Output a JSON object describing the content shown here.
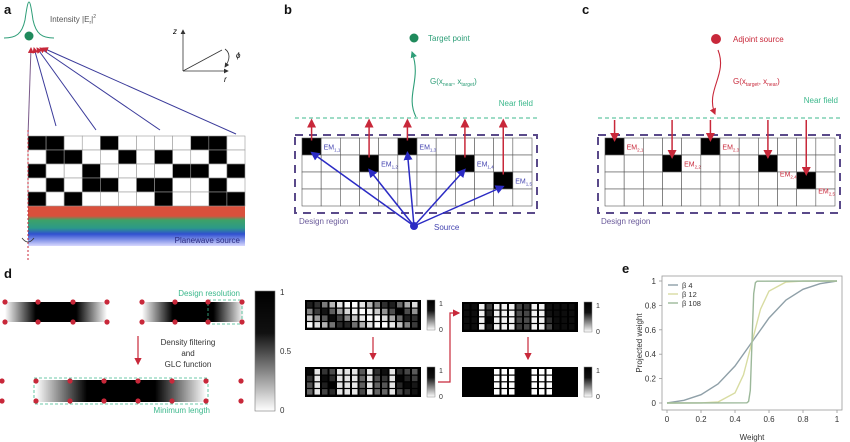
{
  "panel_labels": {
    "a": "a",
    "b": "b",
    "c": "c",
    "d": "d",
    "e": "e"
  },
  "panel_a": {
    "intensity_label": "Intensity |E",
    "intensity_sub": "r",
    "intensity_sup": "2",
    "axis_z": "z",
    "axis_r": "r",
    "axis_phi": "ϕ",
    "source_label": "Planewave source",
    "grid": [
      [
        1,
        1,
        0,
        0,
        1,
        0,
        0,
        0,
        0,
        1,
        1,
        0
      ],
      [
        0,
        1,
        1,
        0,
        0,
        1,
        0,
        1,
        0,
        0,
        1,
        0
      ],
      [
        1,
        0,
        0,
        1,
        0,
        0,
        0,
        0,
        1,
        1,
        0,
        1
      ],
      [
        0,
        1,
        0,
        1,
        1,
        0,
        1,
        1,
        0,
        0,
        1,
        0
      ],
      [
        1,
        0,
        1,
        0,
        0,
        0,
        0,
        1,
        0,
        0,
        1,
        1
      ]
    ]
  },
  "panel_b": {
    "target_label": "Target point",
    "green_fn": "G(x",
    "green_sub1": "near",
    "green_sub2": "target",
    "near_field": "Near field",
    "design_region": "Design region",
    "source": "Source",
    "em_labels": [
      {
        "main": "EM",
        "sub": "1,1"
      },
      {
        "main": "EM",
        "sub": "1,2"
      },
      {
        "main": "EM",
        "sub": "1,3"
      },
      {
        "main": "EM",
        "sub": "1,4"
      },
      {
        "main": "EM",
        "sub": "1,5"
      }
    ]
  },
  "panel_c": {
    "adjoint_label": "Adjoint source",
    "green_fn": "G(x",
    "green_sub1": "target",
    "green_sub2": "near",
    "near_field": "Near field",
    "design_region": "Design region",
    "em_labels": [
      {
        "main": "EM",
        "sub": "2,1"
      },
      {
        "main": "EM",
        "sub": "2,2"
      },
      {
        "main": "EM",
        "sub": "2,3"
      },
      {
        "main": "EM",
        "sub": "2,4"
      },
      {
        "main": "EM",
        "sub": "2,5"
      }
    ]
  },
  "panel_d": {
    "design_resolution": "Design resolution",
    "process": [
      "Density filtering",
      "and",
      "GLC function"
    ],
    "minimum_length": "Minimum length",
    "colorbar_ticks": [
      "1",
      "0.5",
      "0"
    ],
    "small_colorbar_ticks": [
      "1",
      "0"
    ]
  },
  "colors": {
    "red": "#c8283a",
    "green": "#2e9e78",
    "blue": "#2b2bc4",
    "purple": "#5a4a8a",
    "near_field": "#3cb88c"
  },
  "chart_data": {
    "type": "line",
    "xlabel": "Weight",
    "ylabel": "Projected weight",
    "xlim": [
      0,
      1
    ],
    "ylim": [
      0,
      1
    ],
    "xticks": [
      "0",
      "0.2",
      "0.4",
      "0.6",
      "0.8",
      "1"
    ],
    "yticks": [
      "0",
      "0.2",
      "0.4",
      "0.6",
      "0.8",
      "1"
    ],
    "legend_position": "top-left",
    "series": [
      {
        "name": "β 4",
        "color": "#8fa0a8",
        "x": [
          0,
          0.1,
          0.2,
          0.3,
          0.4,
          0.5,
          0.6,
          0.7,
          0.8,
          0.9,
          1
        ],
        "y": [
          0,
          0.022,
          0.068,
          0.156,
          0.303,
          0.5,
          0.697,
          0.844,
          0.932,
          0.978,
          1
        ]
      },
      {
        "name": "β 12",
        "color": "#d8dca2",
        "x": [
          0,
          0.2,
          0.3,
          0.4,
          0.45,
          0.5,
          0.55,
          0.6,
          0.7,
          0.8,
          1
        ],
        "y": [
          0,
          0.001,
          0.008,
          0.083,
          0.231,
          0.5,
          0.769,
          0.917,
          0.992,
          0.999,
          1
        ]
      },
      {
        "name": "β 108",
        "color": "#9cb89a",
        "x": [
          0,
          0.47,
          0.48,
          0.49,
          0.5,
          0.51,
          0.52,
          0.53,
          1
        ],
        "y": [
          0,
          0.002,
          0.013,
          0.103,
          0.5,
          0.897,
          0.987,
          0.998,
          1
        ]
      }
    ]
  }
}
